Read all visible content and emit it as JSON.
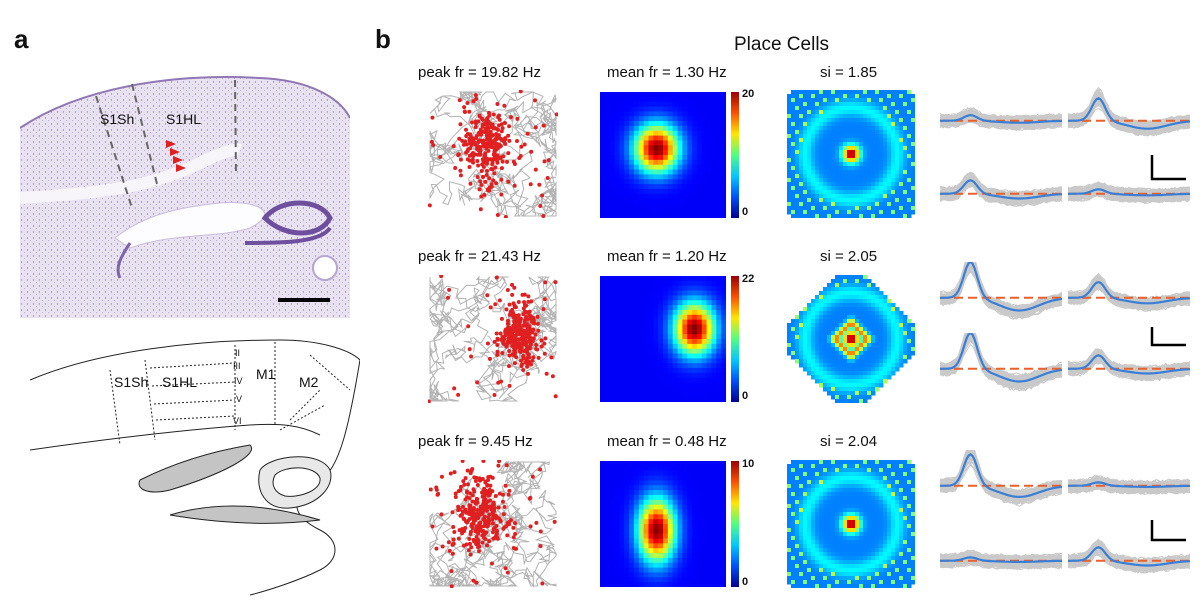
{
  "panel_a": {
    "letter": "a",
    "histology_labels": {
      "s1sh": "S1Sh",
      "s1hl": "S1HL"
    },
    "atlas_labels": {
      "s1sh": "S1Sh",
      "s1hl": "S1HL",
      "m1": "M1",
      "m2": "M2",
      "layers": [
        "II",
        "III",
        "IV",
        "V",
        "VI"
      ]
    }
  },
  "panel_b": {
    "letter": "b",
    "title": "Place Cells",
    "cells": [
      {
        "peak_label": "peak fr = 19.82 Hz",
        "mean_label": "mean fr = 1.30 Hz",
        "si_label": "si = 1.85",
        "cbar_max": "20",
        "cbar_min": "0"
      },
      {
        "peak_label": "peak fr = 21.43 Hz",
        "mean_label": "mean fr = 1.20 Hz",
        "si_label": "si = 2.05",
        "cbar_max": "22",
        "cbar_min": "0"
      },
      {
        "peak_label": "peak fr = 9.45 Hz",
        "mean_label": "mean fr = 0.48 Hz",
        "si_label": "si = 2.04",
        "cbar_max": "10",
        "cbar_min": "0"
      }
    ]
  },
  "colors": {
    "histology": "#b7a5d2",
    "spike": "#e02020",
    "trajectory": "#b3b3b3",
    "mean_waveform": "#3a7fd5",
    "baseline": "#e8602c"
  }
}
